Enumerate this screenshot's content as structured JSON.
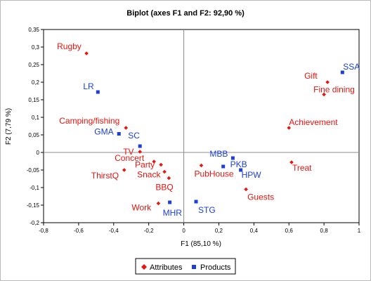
{
  "chart_data": {
    "type": "scatter",
    "title": "Biplot (axes F1 and F2:  92,90 %)",
    "xlabel": "F1 (85,10 %)",
    "ylabel": "F2 (7,79 %)",
    "xlim": [
      -0.8,
      1
    ],
    "ylim": [
      -0.2,
      0.35
    ],
    "xticks": [
      "-0,8",
      "-0,6",
      "-0,4",
      "-0,2",
      "0",
      "0,2",
      "0,4",
      "0,6",
      "0,8",
      "1"
    ],
    "yticks": [
      "-0,2",
      "-0,15",
      "-0,1",
      "-0,05",
      "0",
      "0,05",
      "0,1",
      "0,15",
      "0,2",
      "0,25",
      "0,3",
      "0,35"
    ],
    "xtick_values": [
      -0.8,
      -0.6,
      -0.4,
      -0.2,
      0,
      0.2,
      0.4,
      0.6,
      0.8,
      1
    ],
    "ytick_values": [
      -0.2,
      -0.15,
      -0.1,
      -0.05,
      0,
      0.05,
      0.1,
      0.15,
      0.2,
      0.25,
      0.3,
      0.35
    ],
    "grid": false,
    "legend_position": "bottom",
    "series": [
      {
        "name": "Attributes",
        "color": "#e8140f",
        "marker": "diamond",
        "points": [
          {
            "label": "Rugby",
            "x": -0.555,
            "y": 0.282
          },
          {
            "label": "Camping/fishing",
            "x": -0.33,
            "y": 0.07
          },
          {
            "label": "TV",
            "x": -0.25,
            "y": 0.002
          },
          {
            "label": "Concert",
            "x": -0.17,
            "y": -0.026
          },
          {
            "label": "Party",
            "x": -0.13,
            "y": -0.035
          },
          {
            "label": "ThirstQ",
            "x": -0.34,
            "y": -0.05
          },
          {
            "label": "Snack",
            "x": -0.11,
            "y": -0.055
          },
          {
            "label": "BBQ",
            "x": -0.085,
            "y": -0.073
          },
          {
            "label": "Work",
            "x": -0.145,
            "y": -0.145
          },
          {
            "label": "PubHouse",
            "x": 0.1,
            "y": -0.037
          },
          {
            "label": "Guests",
            "x": 0.355,
            "y": -0.105
          },
          {
            "label": "Treat",
            "x": 0.615,
            "y": -0.028
          },
          {
            "label": "Achievement",
            "x": 0.6,
            "y": 0.07
          },
          {
            "label": "Gift",
            "x": 0.82,
            "y": 0.2
          },
          {
            "label": "Fine dining",
            "x": 0.8,
            "y": 0.165
          }
        ]
      },
      {
        "name": "Products",
        "color": "#1c3fd9",
        "marker": "square",
        "points": [
          {
            "label": "SSA",
            "x": 0.905,
            "y": 0.228
          },
          {
            "label": "LR",
            "x": -0.49,
            "y": 0.172
          },
          {
            "label": "GMA",
            "x": -0.37,
            "y": 0.053
          },
          {
            "label": "SC",
            "x": -0.25,
            "y": 0.018
          },
          {
            "label": "MBB",
            "x": 0.28,
            "y": -0.016
          },
          {
            "label": "PKB",
            "x": 0.225,
            "y": -0.04
          },
          {
            "label": "HPW",
            "x": 0.325,
            "y": -0.05
          },
          {
            "label": "STG",
            "x": 0.07,
            "y": -0.14
          },
          {
            "label": "MHR",
            "x": -0.08,
            "y": -0.142
          }
        ]
      }
    ]
  }
}
